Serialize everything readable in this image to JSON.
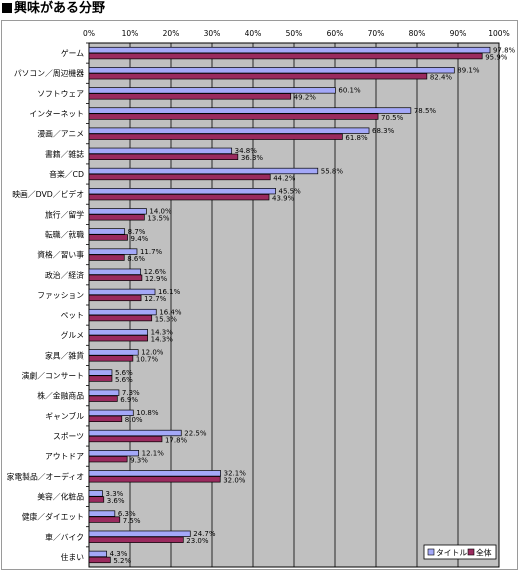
{
  "title": "■興味がある分野",
  "chart_data": {
    "type": "bar",
    "orientation": "horizontal",
    "title": "■興味がある分野",
    "xlim": [
      0,
      100
    ],
    "x_ticks": [
      "0%",
      "10%",
      "20%",
      "30%",
      "40%",
      "50%",
      "60%",
      "70%",
      "80%",
      "90%",
      "100%"
    ],
    "grid": true,
    "legend_position": "bottom-right",
    "categories": [
      "ゲーム",
      "パソコン／周辺機器",
      "ソフトウェア",
      "インターネット",
      "漫画／アニメ",
      "書籍／雑誌",
      "音楽／CD",
      "映画／DVD／ビデオ",
      "旅行／留学",
      "転職／就職",
      "資格／習い事",
      "政治／経済",
      "ファッション",
      "ペット",
      "グルメ",
      "家具／雑貨",
      "演劇／コンサート",
      "株／金融商品",
      "ギャンブル",
      "スポーツ",
      "アウトドア",
      "家電製品／オーディオ",
      "美容／化粧品",
      "健康／ダイエット",
      "車／バイク",
      "住まい"
    ],
    "series": [
      {
        "name": "タイトル",
        "color": "#a4a8f8",
        "values": [
          97.8,
          89.1,
          60.1,
          78.5,
          68.3,
          34.8,
          55.8,
          45.5,
          14.0,
          8.7,
          11.7,
          12.6,
          16.1,
          16.4,
          14.3,
          12.0,
          5.6,
          7.3,
          10.8,
          22.5,
          12.1,
          32.1,
          3.3,
          6.3,
          24.7,
          4.3
        ],
        "labels": [
          "97.8%",
          "89.1%",
          "60.1%",
          "78.5%",
          "68.3%",
          "34.8%",
          "55.8%",
          "45.5%",
          "14.0%",
          "8.7%",
          "11.7%",
          "12.6%",
          "16.1%",
          "16.4%",
          "14.3%",
          "12.0%",
          "5.6%",
          "7.3%",
          "10.8%",
          "22.5%",
          "12.1%",
          "32.1%",
          "3.3%",
          "6.3%",
          "24.7%",
          "4.3%"
        ]
      },
      {
        "name": "全体",
        "color": "#9a2a5e",
        "values": [
          95.9,
          82.4,
          49.2,
          70.5,
          61.8,
          36.3,
          44.2,
          43.9,
          13.5,
          9.4,
          8.6,
          12.9,
          12.7,
          15.3,
          14.3,
          10.7,
          5.6,
          6.9,
          8.0,
          17.8,
          9.3,
          32.0,
          3.6,
          7.5,
          23.0,
          5.2
        ],
        "labels": [
          "95.9%",
          "82.4%",
          "49.2%",
          "70.5%",
          "61.8%",
          "36.3%",
          "44.2%",
          "43.9%",
          "13.5%",
          "9.4%",
          "8.6%",
          "12.9%",
          "12.7%",
          "15.3%",
          "14.3%",
          "10.7%",
          "5.6%",
          "6.9%",
          "8.0%",
          "17.8%",
          "9.3%",
          "32.0%",
          "3.6%",
          "7.5%",
          "23.0%",
          "5.2%"
        ]
      }
    ]
  }
}
